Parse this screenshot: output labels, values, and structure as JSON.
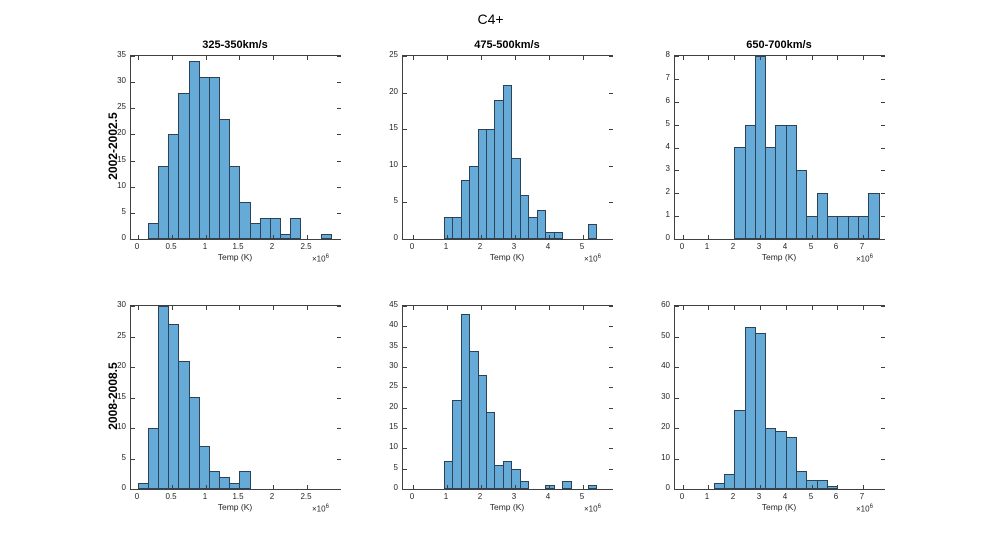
{
  "figure_title": "C4+",
  "row_labels": [
    "2002-2002.5",
    "2008-2008.5"
  ],
  "column_titles": [
    "325-350km/s",
    "475-500km/s",
    "650-700km/s"
  ],
  "colors": {
    "bar_fill": "#66AAD7",
    "bar_edge": "#2B4257",
    "axis": "#404040",
    "text": "#262626"
  },
  "chart_data": [
    {
      "type": "bar",
      "subtype": "histogram",
      "title": "325-350km/s",
      "row_label": "2002-2002.5",
      "xlabel": "Temp (K)",
      "x_scale": "×10^6",
      "xlim": [
        -0.1,
        3.0
      ],
      "ylim": [
        0,
        35
      ],
      "xticks": [
        0,
        0.5,
        1,
        1.5,
        2,
        2.5
      ],
      "xtick_labels": [
        "0",
        "0.5",
        "1",
        "1.5",
        "2",
        "2.5"
      ],
      "yticks": [
        0,
        5,
        10,
        15,
        20,
        25,
        30,
        35
      ],
      "bin_start": 0.15,
      "bin_width": 0.15,
      "counts": [
        3,
        14,
        20,
        28,
        34,
        31,
        31,
        23,
        14,
        7,
        3,
        4,
        4,
        1,
        4,
        0,
        0,
        1
      ],
      "grid": false,
      "legend": null
    },
    {
      "type": "bar",
      "subtype": "histogram",
      "title": "475-500km/s",
      "row_label": "2002-2002.5",
      "xlabel": "Temp (K)",
      "x_scale": "×10^6",
      "xlim": [
        -0.3,
        5.9
      ],
      "ylim": [
        0,
        25
      ],
      "xticks": [
        0,
        1,
        2,
        3,
        4,
        5
      ],
      "xtick_labels": [
        "0",
        "1",
        "2",
        "3",
        "4",
        "5"
      ],
      "yticks": [
        0,
        5,
        10,
        15,
        20,
        25
      ],
      "bin_start": 0.9,
      "bin_width": 0.25,
      "counts": [
        3,
        3,
        8,
        10,
        15,
        15,
        19,
        21,
        11,
        6,
        3,
        4,
        1,
        1,
        0,
        0,
        0,
        2
      ],
      "grid": false,
      "legend": null
    },
    {
      "type": "bar",
      "subtype": "histogram",
      "title": "650-700km/s",
      "row_label": "2002-2002.5",
      "xlabel": "Temp (K)",
      "x_scale": "×10^6",
      "xlim": [
        -0.3,
        7.85
      ],
      "ylim": [
        0,
        8
      ],
      "xticks": [
        0,
        1,
        2,
        3,
        4,
        5,
        6,
        7
      ],
      "xtick_labels": [
        "0",
        "1",
        "2",
        "3",
        "4",
        "5",
        "6",
        "7"
      ],
      "yticks": [
        0,
        1,
        2,
        3,
        4,
        5,
        6,
        7,
        8
      ],
      "bin_start": 2.0,
      "bin_width": 0.4,
      "counts": [
        4,
        5,
        8,
        4,
        5,
        5,
        3,
        1,
        2,
        1,
        1,
        1,
        1,
        2
      ],
      "grid": false,
      "legend": null
    },
    {
      "type": "bar",
      "subtype": "histogram",
      "title": "",
      "row_label": "2008-2008.5",
      "xlabel": "Temp (K)",
      "x_scale": "×10^6",
      "xlim": [
        -0.1,
        3.0
      ],
      "ylim": [
        0,
        30
      ],
      "xticks": [
        0,
        0.5,
        1,
        1.5,
        2,
        2.5
      ],
      "xtick_labels": [
        "0",
        "0.5",
        "1",
        "1.5",
        "2",
        "2.5"
      ],
      "yticks": [
        0,
        5,
        10,
        15,
        20,
        25,
        30
      ],
      "bin_start": 0.0,
      "bin_width": 0.15,
      "counts": [
        1,
        10,
        30,
        27,
        21,
        15,
        7,
        3,
        2,
        1,
        3
      ],
      "grid": false,
      "legend": null
    },
    {
      "type": "bar",
      "subtype": "histogram",
      "title": "",
      "row_label": "2008-2008.5",
      "xlabel": "Temp (K)",
      "x_scale": "×10^6",
      "xlim": [
        -0.3,
        5.9
      ],
      "ylim": [
        0,
        45
      ],
      "xticks": [
        0,
        1,
        2,
        3,
        4,
        5
      ],
      "xtick_labels": [
        "0",
        "1",
        "2",
        "3",
        "4",
        "5"
      ],
      "yticks": [
        0,
        5,
        10,
        15,
        20,
        25,
        30,
        35,
        40,
        45
      ],
      "bin_start": 0.9,
      "bin_width": 0.25,
      "counts": [
        7,
        22,
        43,
        34,
        28,
        19,
        6,
        7,
        5,
        2,
        0,
        0,
        1,
        0,
        2,
        0,
        0,
        1
      ],
      "grid": false,
      "legend": null
    },
    {
      "type": "bar",
      "subtype": "histogram",
      "title": "",
      "row_label": "2008-2008.5",
      "xlabel": "Temp (K)",
      "x_scale": "×10^6",
      "xlim": [
        -0.3,
        7.85
      ],
      "ylim": [
        0,
        60
      ],
      "xticks": [
        0,
        1,
        2,
        3,
        4,
        5,
        6,
        7
      ],
      "xtick_labels": [
        "0",
        "1",
        "2",
        "3",
        "4",
        "5",
        "6",
        "7"
      ],
      "yticks": [
        0,
        10,
        20,
        30,
        40,
        50,
        60
      ],
      "bin_start": 1.2,
      "bin_width": 0.4,
      "counts": [
        2,
        5,
        26,
        53,
        51,
        20,
        19,
        17,
        6,
        3,
        3,
        1
      ],
      "grid": false,
      "legend": null
    }
  ]
}
